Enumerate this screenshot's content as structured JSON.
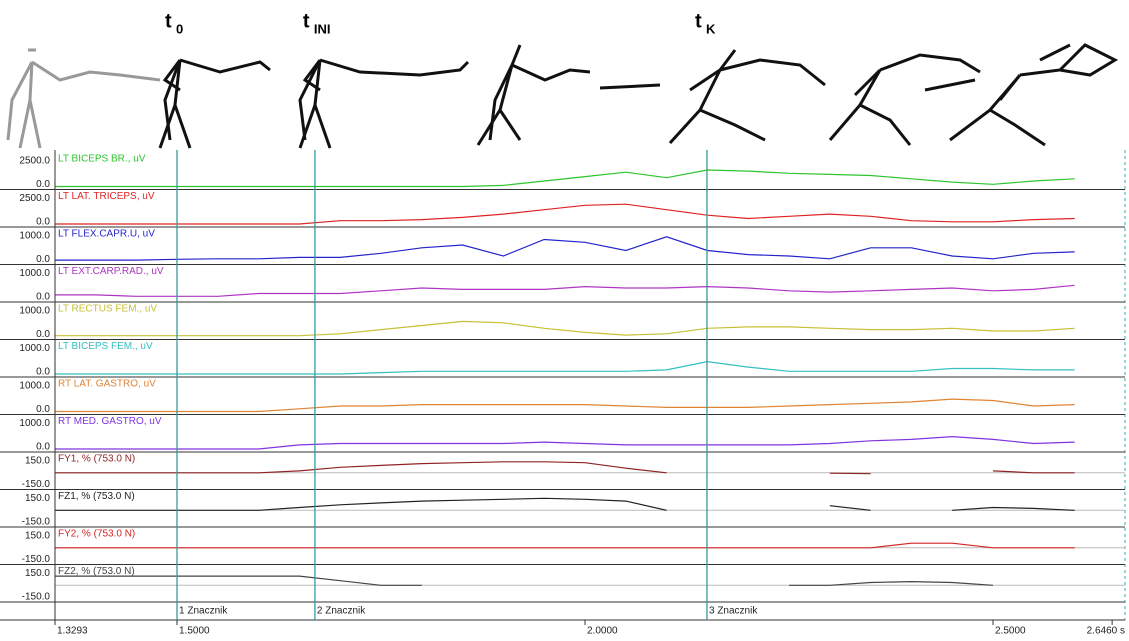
{
  "annotations": [
    {
      "base": "t",
      "sub": "0",
      "time": 1.5
    },
    {
      "base": "t",
      "sub": "INI",
      "time": 1.669
    },
    {
      "base": "t",
      "sub": "K",
      "time": 2.1495
    }
  ],
  "time": {
    "xlim": [
      1.3293,
      2.646
    ],
    "xticks": [
      {
        "value": 1.3293,
        "label": "1.3293"
      },
      {
        "value": 1.5,
        "label": "1.5000"
      },
      {
        "value": 2.0,
        "label": "2.0000"
      },
      {
        "value": 2.5,
        "label": "2.5000"
      },
      {
        "value": 2.646,
        "label": "2.6460 s"
      }
    ],
    "x": [
      1.35,
      1.4,
      1.45,
      1.5,
      1.55,
      1.6,
      1.65,
      1.7,
      1.75,
      1.8,
      1.85,
      1.9,
      1.95,
      2.0,
      2.05,
      2.1,
      2.15,
      2.2,
      2.25,
      2.3,
      2.35,
      2.4,
      2.45,
      2.5,
      2.55,
      2.6
    ]
  },
  "markers": [
    {
      "time": 1.5,
      "label": "1 Znacznik"
    },
    {
      "time": 1.669,
      "label": "2 Znacznik"
    },
    {
      "time": 2.1495,
      "label": "3 Znacznik"
    }
  ],
  "channels": [
    {
      "label": "LT BICEPS BR., uV",
      "color": "#2ec42e",
      "ylim": [
        0,
        2500
      ],
      "yticks": [
        {
          "value": 2500,
          "label": "2500.0"
        },
        {
          "value": 0,
          "label": "0.0"
        }
      ],
      "values": [
        0,
        0,
        0,
        0,
        0,
        0,
        0,
        0,
        0,
        0,
        0,
        100,
        500,
        900,
        1300,
        800,
        1500,
        1400,
        1200,
        1100,
        1000,
        700,
        400,
        200,
        500,
        700
      ]
    },
    {
      "label": "LT LAT. TRICEPS, uV",
      "color": "#e02424",
      "ylim": [
        0,
        2500
      ],
      "yticks": [
        {
          "value": 2500,
          "label": "2500.0"
        },
        {
          "value": 0,
          "label": "0.0"
        }
      ],
      "values": [
        0,
        0,
        0,
        0,
        0,
        0,
        0,
        300,
        300,
        400,
        600,
        900,
        1300,
        1700,
        1800,
        1300,
        800,
        500,
        700,
        900,
        700,
        300,
        200,
        200,
        400,
        500
      ]
    },
    {
      "label": "LT FLEX.CAPR.U, uV",
      "color": "#2424cc",
      "ylim": [
        0,
        1000
      ],
      "yticks": [
        {
          "value": 1000,
          "label": "1000.0"
        },
        {
          "value": 0,
          "label": "0.0"
        }
      ],
      "values": [
        50,
        50,
        50,
        80,
        100,
        100,
        150,
        150,
        300,
        500,
        600,
        200,
        800,
        700,
        400,
        900,
        400,
        250,
        200,
        100,
        500,
        500,
        200,
        100,
        300,
        350
      ]
    },
    {
      "label": "LT EXT.CARP.RAD., uV",
      "color": "#b034c4",
      "ylim": [
        0,
        1000
      ],
      "yticks": [
        {
          "value": 1000,
          "label": "1000.0"
        },
        {
          "value": 0,
          "label": "0.0"
        }
      ],
      "values": [
        150,
        150,
        100,
        100,
        100,
        200,
        200,
        200,
        300,
        400,
        350,
        350,
        350,
        450,
        400,
        400,
        450,
        400,
        300,
        250,
        300,
        350,
        400,
        300,
        350,
        500
      ]
    },
    {
      "label": "LT RECTUS FEM., uV",
      "color": "#c8c034",
      "ylim": [
        0,
        1000
      ],
      "yticks": [
        {
          "value": 1000,
          "label": "1000.0"
        },
        {
          "value": 0,
          "label": "0.0"
        }
      ],
      "values": [
        30,
        30,
        30,
        30,
        30,
        30,
        30,
        100,
        250,
        400,
        550,
        500,
        300,
        150,
        50,
        100,
        300,
        350,
        350,
        300,
        250,
        250,
        300,
        200,
        200,
        300
      ]
    },
    {
      "label": "LT BICEPS FEM., uV",
      "color": "#34c0c0",
      "ylim": [
        0,
        1000
      ],
      "yticks": [
        {
          "value": 1000,
          "label": "1000.0"
        },
        {
          "value": 0,
          "label": "0.0"
        }
      ],
      "values": [
        0,
        0,
        0,
        0,
        0,
        0,
        0,
        0,
        50,
        100,
        100,
        100,
        100,
        100,
        100,
        150,
        450,
        250,
        100,
        100,
        100,
        100,
        200,
        200,
        150,
        150
      ]
    },
    {
      "label": "RT LAT. GASTRO, uV",
      "color": "#e08434",
      "ylim": [
        0,
        1000
      ],
      "yticks": [
        {
          "value": 1000,
          "label": "1000.0"
        },
        {
          "value": 0,
          "label": "0.0"
        }
      ],
      "values": [
        0,
        0,
        0,
        0,
        0,
        0,
        100,
        200,
        200,
        250,
        250,
        250,
        250,
        250,
        200,
        150,
        150,
        150,
        200,
        250,
        300,
        350,
        450,
        400,
        200,
        250
      ]
    },
    {
      "label": "RT MED. GASTRO, uV",
      "color": "#8034e0",
      "ylim": [
        0,
        1000
      ],
      "yticks": [
        {
          "value": 1000,
          "label": "1000.0"
        },
        {
          "value": 0,
          "label": "0.0"
        }
      ],
      "values": [
        0,
        0,
        0,
        0,
        0,
        0,
        150,
        200,
        200,
        200,
        200,
        200,
        250,
        200,
        150,
        150,
        150,
        150,
        150,
        200,
        300,
        350,
        450,
        350,
        200,
        250
      ]
    },
    {
      "label": "FY1, % (753.0 N)",
      "color": "#902424",
      "ylim": [
        -150,
        150
      ],
      "yticks": [
        {
          "value": 150,
          "label": "150.0"
        },
        {
          "value": -150,
          "label": "-150.0"
        }
      ],
      "values": [
        0,
        0,
        0,
        0,
        0,
        0,
        20,
        60,
        80,
        100,
        110,
        120,
        120,
        110,
        50,
        0,
        null,
        null,
        null,
        -5,
        -10,
        null,
        null,
        20,
        0,
        0
      ]
    },
    {
      "label": "FZ1, % (753.0 N)",
      "color": "#222222",
      "ylim": [
        -150,
        150
      ],
      "yticks": [
        {
          "value": 150,
          "label": "150.0"
        },
        {
          "value": -150,
          "label": "-150.0"
        }
      ],
      "values": [
        0,
        0,
        0,
        0,
        0,
        0,
        30,
        60,
        80,
        100,
        110,
        120,
        130,
        120,
        100,
        0,
        null,
        null,
        null,
        50,
        0,
        null,
        0,
        30,
        20,
        0
      ]
    },
    {
      "label": "FY2, % (753.0 N)",
      "color": "#d42424",
      "ylim": [
        -150,
        150
      ],
      "yticks": [
        {
          "value": 150,
          "label": "150.0"
        },
        {
          "value": -150,
          "label": "-150.0"
        }
      ],
      "values": [
        0,
        0,
        0,
        0,
        0,
        0,
        0,
        0,
        0,
        0,
        0,
        0,
        0,
        0,
        0,
        0,
        0,
        0,
        0,
        0,
        0,
        50,
        50,
        0,
        0,
        0
      ]
    },
    {
      "label": "FZ2, % (753.0 N)",
      "color": "#444444",
      "ylim": [
        -150,
        150
      ],
      "yticks": [
        {
          "value": 150,
          "label": "150.0"
        },
        {
          "value": -150,
          "label": "-150.0"
        }
      ],
      "values": [
        100,
        100,
        100,
        100,
        100,
        100,
        100,
        50,
        0,
        0,
        null,
        null,
        null,
        null,
        null,
        null,
        null,
        null,
        0,
        0,
        30,
        40,
        30,
        0,
        null,
        null
      ]
    }
  ]
}
